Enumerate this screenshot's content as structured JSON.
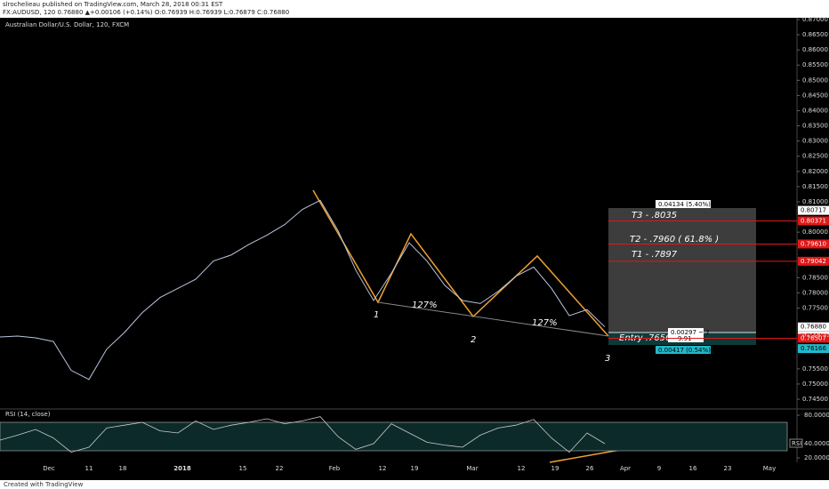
{
  "header": {
    "publisher": "slrochelieau published on TradingView.com, March 28, 2018 00:31 EST",
    "symbol": "FX:AUDUSD, 120  0.76880 ▲+0.00106 (+0.14%)  O:0.76939 H:0.76939 L:0.76879 C:0.76880"
  },
  "chart_data": {
    "type": "line",
    "title": "Australian Dollar/U.S. Dollar, 120, FXCM",
    "color": "#b8c4dc",
    "values": [
      0.7655,
      0.7658,
      0.7652,
      0.764,
      0.7545,
      0.7515,
      0.7615,
      0.767,
      0.7735,
      0.7785,
      0.7815,
      0.7845,
      0.7905,
      0.7925,
      0.796,
      0.799,
      0.8025,
      0.8075,
      0.8105,
      0.8005,
      0.7875,
      0.7775,
      0.7865,
      0.7965,
      0.7905,
      0.7825,
      0.7775,
      0.7765,
      0.7805,
      0.7855,
      0.7885,
      0.7815,
      0.7725,
      0.7745,
      0.7688
    ],
    "ylim": [
      0.745,
      0.87
    ],
    "yticks": [
      {
        "value": 0.87,
        "label": "0.87000"
      },
      {
        "value": 0.865,
        "label": "0.86500"
      },
      {
        "value": 0.86,
        "label": "0.86000"
      },
      {
        "value": 0.855,
        "label": "0.85500"
      },
      {
        "value": 0.85,
        "label": "0.85000"
      },
      {
        "value": 0.845,
        "label": "0.84500"
      },
      {
        "value": 0.84,
        "label": "0.84000"
      },
      {
        "value": 0.835,
        "label": "0.83500"
      },
      {
        "value": 0.83,
        "label": "0.83000"
      },
      {
        "value": 0.825,
        "label": "0.82500"
      },
      {
        "value": 0.82,
        "label": "0.82000"
      },
      {
        "value": 0.815,
        "label": "0.81500"
      },
      {
        "value": 0.81,
        "label": "0.81000"
      },
      {
        "value": 0.8,
        "label": "0.80000"
      },
      {
        "value": 0.785,
        "label": "0.78500"
      },
      {
        "value": 0.78,
        "label": "0.78000"
      },
      {
        "value": 0.775,
        "label": "0.77500"
      },
      {
        "value": 0.755,
        "label": "0.75500"
      },
      {
        "value": 0.75,
        "label": "0.75000"
      },
      {
        "value": 0.745,
        "label": "0.74500"
      }
    ],
    "price_tags": [
      {
        "value": 0.80717,
        "label": "0.80717",
        "color": "#ffffff",
        "text": "#000000"
      },
      {
        "value": 0.80371,
        "label": "0.80371",
        "color": "#e01818",
        "text": "#ffffff"
      },
      {
        "value": 0.7961,
        "label": "0.79610",
        "color": "#e01818",
        "text": "#ffffff"
      },
      {
        "value": 0.79042,
        "label": "0.79042",
        "color": "#e01818",
        "text": "#ffffff"
      },
      {
        "value": 0.7688,
        "label": "0.76880",
        "color": "#ffffff",
        "text": "#000000"
      },
      {
        "value": 0.76583,
        "label": "0.76583",
        "color": "#ffffff",
        "text": "#000000"
      },
      {
        "value": 0.76507,
        "label": "0.76507",
        "color": "#e01818",
        "text": "#ffffff"
      },
      {
        "value": 0.76166,
        "label": "0.76166",
        "color": "#22b8c8",
        "text": "#000000"
      }
    ],
    "countdown": "01:29:53",
    "x_labels": [
      "Dec",
      "11",
      "18",
      "2018",
      "15",
      "22",
      "Feb",
      "12",
      "19",
      "Mar",
      "12",
      "19",
      "26",
      "Apr",
      "9",
      "16",
      "23",
      "May"
    ],
    "annotations": {
      "wave1": "1",
      "wave2": "2",
      "wave3": "3",
      "ext1": "127%",
      "ext2": "127%",
      "t3": "T3 - .8035",
      "t2": "T2 - .7960  ( 61.8% )",
      "t1": "T1 - .7897",
      "entry": "Entry .7656",
      "box_top": "0.04134 (5.40%) 1.08",
      "box_mid": "0.00297 ~ 2",
      "box_mid2": "9.91",
      "box_bottom": "0.00417 (0.54%) 0.99"
    }
  },
  "rsi": {
    "title": "RSI (14, close)",
    "values": [
      45,
      52,
      60,
      48,
      28,
      35,
      62,
      66,
      70,
      58,
      55,
      72,
      60,
      66,
      70,
      75,
      68,
      72,
      78,
      50,
      32,
      40,
      68,
      55,
      42,
      38,
      35,
      52,
      62,
      66,
      74,
      48,
      28,
      55,
      40
    ],
    "ylim": [
      20,
      80
    ],
    "yticks": [
      {
        "value": 80,
        "label": "80.0000"
      },
      {
        "value": 40,
        "label": "40.0000"
      },
      {
        "value": 20,
        "label": "20.0000"
      }
    ],
    "tag": "RSI"
  },
  "footer": "Created with TradingView"
}
